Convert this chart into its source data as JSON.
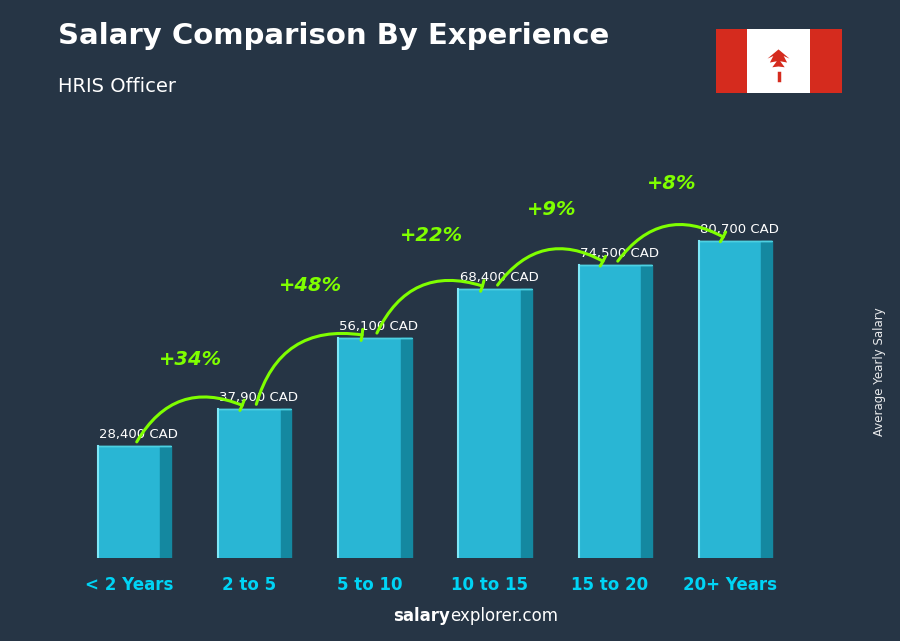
{
  "title": "Salary Comparison By Experience",
  "subtitle": "HRIS Officer",
  "categories": [
    "< 2 Years",
    "2 to 5",
    "5 to 10",
    "10 to 15",
    "15 to 20",
    "20+ Years"
  ],
  "values": [
    28400,
    37900,
    56100,
    68400,
    74500,
    80700
  ],
  "labels": [
    "28,400 CAD",
    "37,900 CAD",
    "56,100 CAD",
    "68,400 CAD",
    "74,500 CAD",
    "80,700 CAD"
  ],
  "pct_labels": [
    "+34%",
    "+48%",
    "+22%",
    "+9%",
    "+8%"
  ],
  "bar_face_color": "#29b6d4",
  "bar_side_color": "#1488a0",
  "bar_top_color": "#4dd0e1",
  "bar_highlight": "#7ee8f7",
  "bg_color": "#263545",
  "title_color": "#ffffff",
  "subtitle_color": "#ffffff",
  "label_color": "#ffffff",
  "pct_color": "#7fff00",
  "xlabel_color": "#00d4f5",
  "ylabel_text": "Average Yearly Salary",
  "footer_salary": "salary",
  "footer_rest": "explorer.com",
  "ylim": [
    0,
    98000
  ],
  "bar_width": 0.52,
  "bar_depth": 0.09
}
